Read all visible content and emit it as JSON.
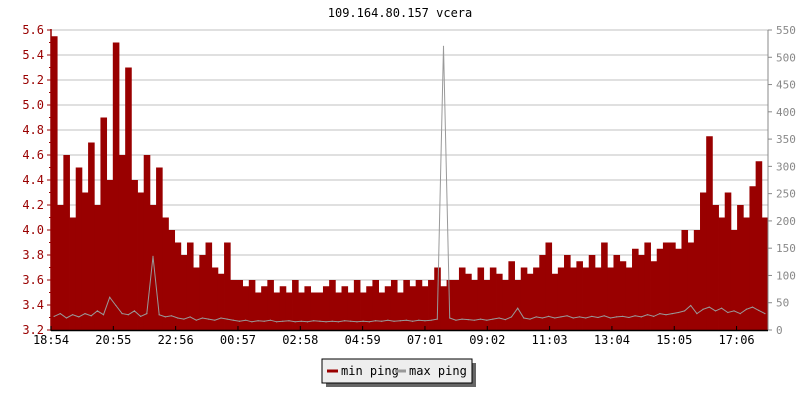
{
  "chart_data": {
    "type": "bar",
    "title": "109.164.80.157 vcera",
    "start_time": "18:54",
    "sample_interval_minutes": 12,
    "x_tick_labels": [
      "18:54",
      "20:55",
      "22:56",
      "00:57",
      "02:58",
      "04:59",
      "07:01",
      "09:02",
      "11:03",
      "13:04",
      "15:05",
      "17:06"
    ],
    "y_left": {
      "lim": [
        3.2,
        5.6
      ],
      "step": 0.2,
      "color": "#990000"
    },
    "y_right": {
      "lim": [
        0,
        550
      ],
      "step": 50,
      "color": "#888888"
    },
    "grid": true,
    "legend_position": "bottom-center",
    "series": [
      {
        "name": "min ping",
        "axis": "left",
        "type": "bar",
        "color": "#990000",
        "values": [
          5.55,
          4.2,
          4.6,
          4.1,
          4.5,
          4.3,
          4.7,
          4.2,
          4.9,
          4.4,
          5.5,
          4.6,
          5.3,
          4.4,
          4.3,
          4.6,
          4.2,
          4.5,
          4.1,
          4.0,
          3.9,
          3.8,
          3.9,
          3.7,
          3.8,
          3.9,
          3.7,
          3.65,
          3.9,
          3.6,
          3.6,
          3.55,
          3.6,
          3.5,
          3.55,
          3.6,
          3.5,
          3.55,
          3.5,
          3.6,
          3.5,
          3.55,
          3.5,
          3.5,
          3.55,
          3.6,
          3.5,
          3.55,
          3.5,
          3.6,
          3.5,
          3.55,
          3.6,
          3.5,
          3.55,
          3.6,
          3.5,
          3.6,
          3.55,
          3.6,
          3.55,
          3.6,
          3.7,
          3.55,
          3.6,
          3.6,
          3.7,
          3.65,
          3.6,
          3.7,
          3.6,
          3.7,
          3.65,
          3.6,
          3.75,
          3.6,
          3.7,
          3.65,
          3.7,
          3.8,
          3.9,
          3.65,
          3.7,
          3.8,
          3.7,
          3.75,
          3.7,
          3.8,
          3.7,
          3.9,
          3.7,
          3.8,
          3.75,
          3.7,
          3.85,
          3.8,
          3.9,
          3.75,
          3.85,
          3.9,
          3.9,
          3.85,
          4.0,
          3.9,
          4.0,
          4.3,
          4.75,
          4.2,
          4.1,
          4.3,
          4.0,
          4.2,
          4.1,
          4.35,
          4.55,
          4.1
        ]
      },
      {
        "name": "max ping",
        "axis": "right",
        "type": "line",
        "color": "#999999",
        "values": [
          25,
          30,
          22,
          28,
          24,
          30,
          26,
          35,
          28,
          60,
          45,
          30,
          28,
          35,
          25,
          30,
          135,
          28,
          24,
          26,
          22,
          20,
          24,
          18,
          22,
          20,
          18,
          22,
          20,
          18,
          16,
          18,
          15,
          17,
          16,
          18,
          15,
          16,
          17,
          15,
          16,
          15,
          17,
          16,
          15,
          16,
          15,
          17,
          16,
          15,
          16,
          15,
          17,
          16,
          18,
          16,
          17,
          18,
          16,
          18,
          17,
          18,
          20,
          520,
          22,
          18,
          20,
          19,
          18,
          20,
          18,
          20,
          22,
          19,
          24,
          40,
          22,
          20,
          24,
          22,
          25,
          22,
          24,
          26,
          22,
          24,
          22,
          25,
          23,
          26,
          22,
          24,
          25,
          23,
          26,
          24,
          28,
          25,
          30,
          28,
          30,
          32,
          35,
          45,
          30,
          38,
          42,
          35,
          40,
          32,
          35,
          30,
          38,
          42,
          36,
          30
        ]
      }
    ]
  }
}
